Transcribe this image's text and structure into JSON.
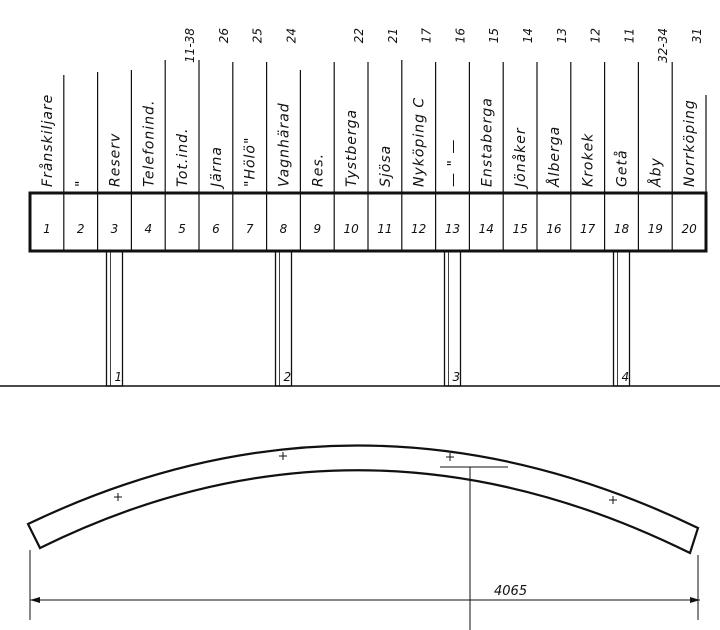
{
  "columns": [
    {
      "number": "1",
      "label": "Frånskiljare",
      "code": ""
    },
    {
      "number": "2",
      "label": "\"",
      "code": ""
    },
    {
      "number": "3",
      "label": "Reserv",
      "code": ""
    },
    {
      "number": "4",
      "label": "Telefonind.",
      "code": ""
    },
    {
      "number": "5",
      "label": "Tot.ind.",
      "code": "11-38"
    },
    {
      "number": "6",
      "label": "Järna",
      "code": "26"
    },
    {
      "number": "7",
      "label": "\"Hölö\"",
      "code": "25"
    },
    {
      "number": "8",
      "label": "Vagnhärad",
      "code": "24"
    },
    {
      "number": "9",
      "label": "Res.",
      "code": ""
    },
    {
      "number": "10",
      "label": "Tystberga",
      "code": "22"
    },
    {
      "number": "11",
      "label": "Sjösa",
      "code": "21"
    },
    {
      "number": "12",
      "label": "Nyköping C",
      "code": "17"
    },
    {
      "number": "13",
      "label": "— \" —",
      "code": "16"
    },
    {
      "number": "14",
      "label": "Enstaberga",
      "code": "15"
    },
    {
      "number": "15",
      "label": "Jönåker",
      "code": "14"
    },
    {
      "number": "16",
      "label": "Ålberga",
      "code": "13"
    },
    {
      "number": "17",
      "label": "Krokek",
      "code": "12"
    },
    {
      "number": "18",
      "label": "Getå",
      "code": "11"
    },
    {
      "number": "19",
      "label": "Åby",
      "code": "32-34"
    },
    {
      "number": "20",
      "label": "Norrköping",
      "code": "31"
    }
  ],
  "posts": [
    {
      "label": "1",
      "column": 3
    },
    {
      "label": "2",
      "column": 8
    },
    {
      "label": "3",
      "column": 13
    },
    {
      "label": "4",
      "column": 18
    }
  ],
  "dimension": {
    "value": "4065"
  }
}
